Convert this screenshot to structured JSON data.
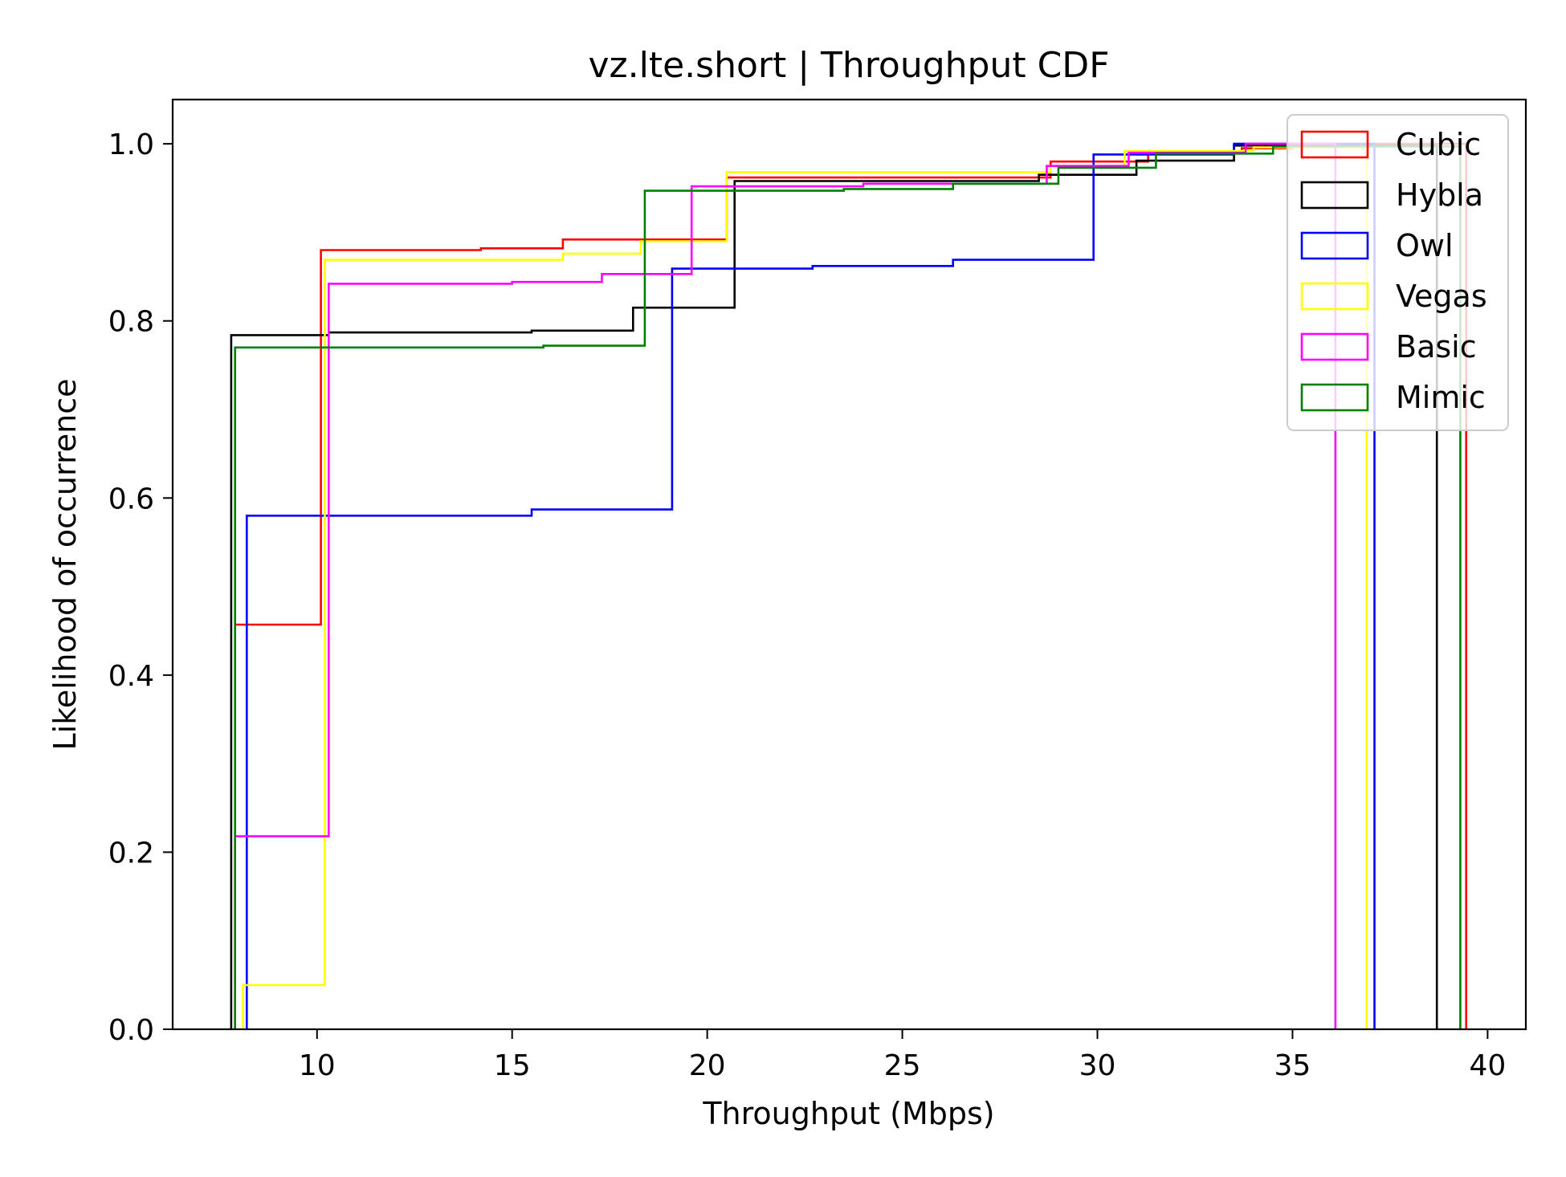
{
  "chart_data": {
    "type": "line",
    "step": true,
    "title": "vz.lte.short | Throughput CDF",
    "xlabel": "Throughput (Mbps)",
    "ylabel": "Likelihood of occurrence",
    "xlim": [
      6.3,
      40.98
    ],
    "ylim": [
      0.0,
      1.05
    ],
    "xticks": [
      10,
      15,
      20,
      25,
      30,
      35,
      40
    ],
    "yticks": [
      0.0,
      0.2,
      0.4,
      0.6,
      0.8,
      1.0
    ],
    "xtick_labels": [
      "10",
      "15",
      "20",
      "25",
      "30",
      "35",
      "40"
    ],
    "ytick_labels": [
      "0.0",
      "0.2",
      "0.4",
      "0.6",
      "0.8",
      "1.0"
    ],
    "grid": false,
    "legend_position": "top-right",
    "series": [
      {
        "name": "Cubic",
        "color": "#ff0000",
        "points": [
          [
            7.9,
            0.457
          ],
          [
            10.1,
            0.457
          ],
          [
            10.1,
            0.88
          ],
          [
            14.2,
            0.88
          ],
          [
            14.2,
            0.882
          ],
          [
            16.3,
            0.882
          ],
          [
            16.3,
            0.892
          ],
          [
            20.5,
            0.892
          ],
          [
            20.5,
            0.962
          ],
          [
            28.8,
            0.962
          ],
          [
            28.8,
            0.98
          ],
          [
            31.3,
            0.98
          ],
          [
            31.3,
            0.99
          ],
          [
            33.7,
            0.99
          ],
          [
            33.7,
            0.995
          ],
          [
            35.0,
            0.995
          ],
          [
            35.0,
            1.0
          ],
          [
            39.45,
            1.0
          ],
          [
            39.45,
            0.0
          ]
        ]
      },
      {
        "name": "Hybla",
        "color": "#000000",
        "points": [
          [
            7.8,
            0.0
          ],
          [
            7.8,
            0.784
          ],
          [
            10.3,
            0.784
          ],
          [
            10.3,
            0.787
          ],
          [
            15.5,
            0.787
          ],
          [
            15.5,
            0.789
          ],
          [
            18.1,
            0.789
          ],
          [
            18.1,
            0.815
          ],
          [
            20.7,
            0.815
          ],
          [
            20.7,
            0.958
          ],
          [
            28.5,
            0.958
          ],
          [
            28.5,
            0.965
          ],
          [
            31.0,
            0.965
          ],
          [
            31.0,
            0.981
          ],
          [
            33.5,
            0.981
          ],
          [
            33.5,
            0.998
          ],
          [
            38.7,
            0.998
          ],
          [
            38.7,
            0.0
          ]
        ]
      },
      {
        "name": "Owl",
        "color": "#0000ff",
        "points": [
          [
            8.2,
            0.0
          ],
          [
            8.2,
            0.58
          ],
          [
            15.5,
            0.58
          ],
          [
            15.5,
            0.587
          ],
          [
            19.1,
            0.587
          ],
          [
            19.1,
            0.859
          ],
          [
            22.7,
            0.859
          ],
          [
            22.7,
            0.862
          ],
          [
            26.3,
            0.862
          ],
          [
            26.3,
            0.869
          ],
          [
            29.9,
            0.869
          ],
          [
            29.9,
            0.988
          ],
          [
            33.5,
            0.988
          ],
          [
            33.5,
            1.0
          ],
          [
            37.1,
            1.0
          ],
          [
            37.1,
            0.0
          ]
        ]
      },
      {
        "name": "Vegas",
        "color": "#ffff00",
        "points": [
          [
            8.1,
            0.0
          ],
          [
            8.1,
            0.05
          ],
          [
            10.2,
            0.05
          ],
          [
            10.2,
            0.869
          ],
          [
            16.3,
            0.869
          ],
          [
            16.3,
            0.876
          ],
          [
            18.3,
            0.876
          ],
          [
            18.3,
            0.89
          ],
          [
            20.5,
            0.89
          ],
          [
            20.5,
            0.968
          ],
          [
            28.8,
            0.968
          ],
          [
            28.8,
            0.975
          ],
          [
            30.7,
            0.975
          ],
          [
            30.7,
            0.992
          ],
          [
            34.0,
            0.992
          ],
          [
            34.0,
            0.996
          ],
          [
            36.9,
            0.996
          ],
          [
            36.9,
            0.0
          ]
        ]
      },
      {
        "name": "Basic",
        "color": "#ff00ff",
        "points": [
          [
            7.9,
            0.0
          ],
          [
            7.9,
            0.218
          ],
          [
            10.3,
            0.218
          ],
          [
            10.3,
            0.842
          ],
          [
            15.0,
            0.842
          ],
          [
            15.0,
            0.844
          ],
          [
            17.3,
            0.844
          ],
          [
            17.3,
            0.853
          ],
          [
            19.6,
            0.853
          ],
          [
            19.6,
            0.952
          ],
          [
            24.0,
            0.952
          ],
          [
            24.0,
            0.955
          ],
          [
            28.7,
            0.955
          ],
          [
            28.7,
            0.975
          ],
          [
            30.8,
            0.975
          ],
          [
            30.8,
            0.99
          ],
          [
            33.8,
            0.99
          ],
          [
            33.8,
            1.0
          ],
          [
            36.1,
            1.0
          ],
          [
            36.1,
            0.0
          ]
        ]
      },
      {
        "name": "Mimic",
        "color": "#008000",
        "points": [
          [
            7.9,
            0.0
          ],
          [
            7.9,
            0.77
          ],
          [
            15.8,
            0.77
          ],
          [
            15.8,
            0.772
          ],
          [
            18.4,
            0.772
          ],
          [
            18.4,
            0.947
          ],
          [
            23.5,
            0.947
          ],
          [
            23.5,
            0.949
          ],
          [
            26.3,
            0.949
          ],
          [
            26.3,
            0.955
          ],
          [
            29.0,
            0.955
          ],
          [
            29.0,
            0.973
          ],
          [
            31.5,
            0.973
          ],
          [
            31.5,
            0.989
          ],
          [
            34.5,
            0.989
          ],
          [
            34.5,
            0.997
          ],
          [
            39.3,
            0.997
          ],
          [
            39.3,
            0.0
          ]
        ]
      }
    ]
  }
}
